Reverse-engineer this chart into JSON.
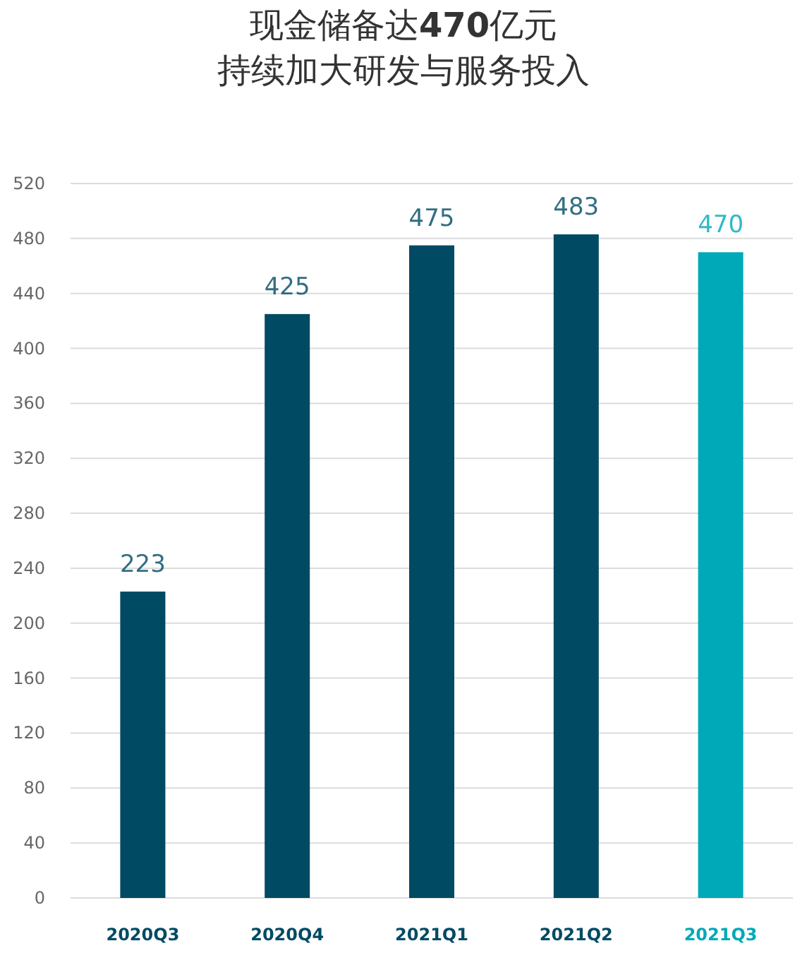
{
  "chart_data": {
    "type": "bar",
    "title": "现金储备达**470**亿元",
    "subtitle": "持续加大研发与服务投入",
    "categories": [
      "2020Q3",
      "2020Q4",
      "2021Q1",
      "2021Q2",
      "2021Q3"
    ],
    "values": [
      223,
      425,
      475,
      483,
      470
    ],
    "colors": [
      "#004a63",
      "#004a63",
      "#004a63",
      "#004a63",
      "#00a9b7"
    ],
    "ylim": [
      0,
      520
    ],
    "yticks": [
      0,
      40,
      80,
      120,
      160,
      200,
      240,
      280,
      320,
      360,
      400,
      440,
      480,
      520
    ],
    "grid": "y",
    "data_labels": true
  }
}
